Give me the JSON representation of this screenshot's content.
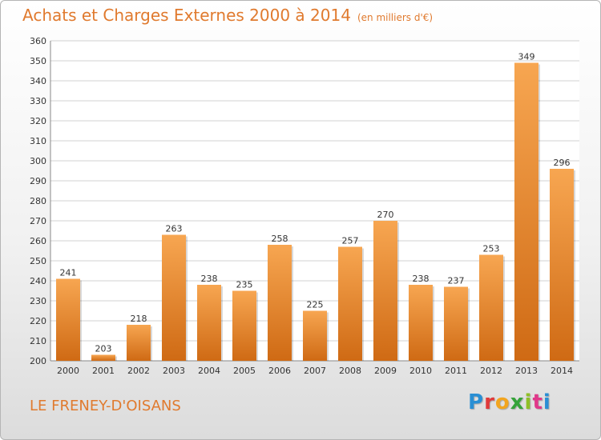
{
  "header": {
    "title": "Achats et Charges Externes 2000 à 2014",
    "subtitle": "(en milliers d'€)"
  },
  "footer": {
    "commune": "LE FRENEY-D'OISANS",
    "brand": "Proxiti",
    "brand_colors": [
      "#2a8fd4",
      "#e03a3a",
      "#f2a51f",
      "#35a33a",
      "#8fbf26",
      "#e0388a",
      "#2a8fd4"
    ]
  },
  "colors": {
    "accent": "#e07a2e",
    "bar_top": "#f7a651",
    "bar_bottom": "#cf6a14",
    "grid": "#d0d0d0"
  },
  "chart_data": {
    "type": "bar",
    "categories": [
      "2000",
      "2001",
      "2002",
      "2003",
      "2004",
      "2005",
      "2006",
      "2007",
      "2008",
      "2009",
      "2010",
      "2011",
      "2012",
      "2013",
      "2014"
    ],
    "values": [
      241,
      203,
      218,
      263,
      238,
      235,
      258,
      225,
      257,
      270,
      238,
      237,
      253,
      349,
      296
    ],
    "ylim": [
      200,
      360
    ],
    "ytick_step": 10,
    "grid": true
  }
}
